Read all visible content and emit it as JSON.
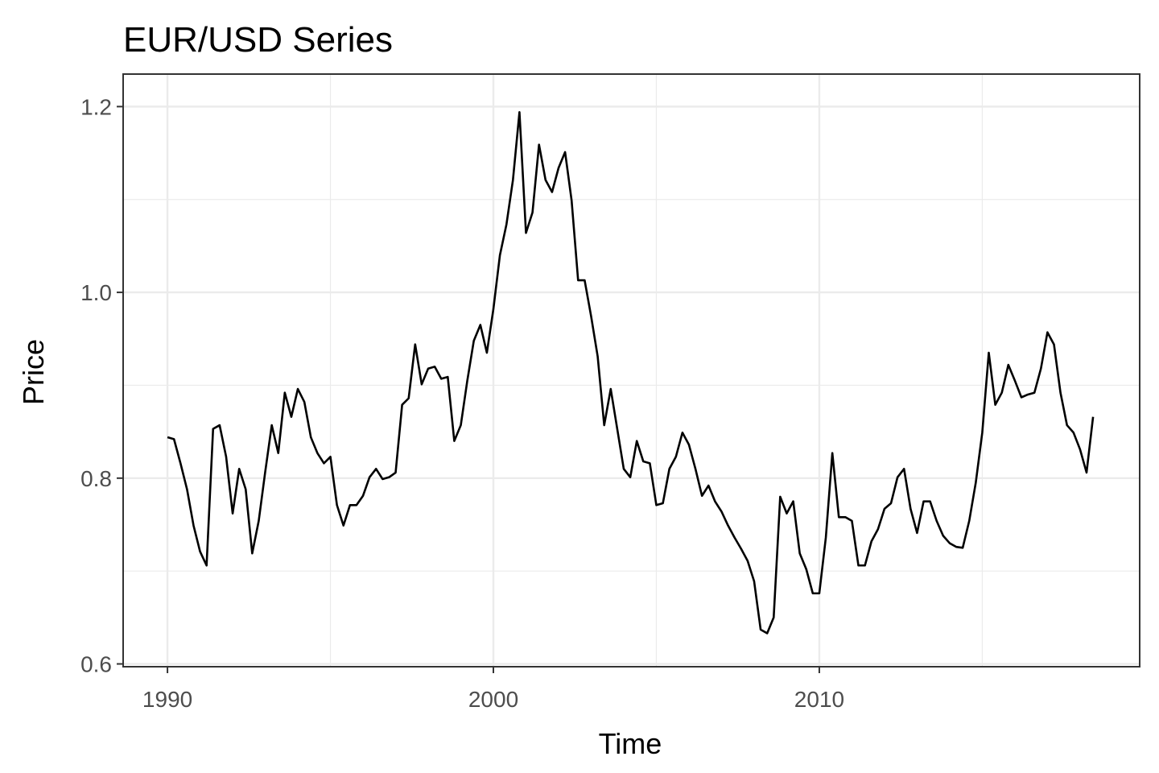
{
  "chart_data": {
    "type": "line",
    "title": "EUR/USD Series",
    "x_label": "Time",
    "y_label": "Price",
    "color": "#000000",
    "grid": true,
    "xlim": [
      1988.64,
      2019.83
    ],
    "ylim": [
      0.597,
      1.235
    ],
    "xticks": [
      1990,
      2000,
      2010
    ],
    "yticks": [
      0.6,
      0.8,
      {
        "value": 1,
        "label": "1.0"
      },
      1.2
    ],
    "x_minor_grid": [
      1995,
      2005,
      2015
    ],
    "y_minor_grid": [
      0.7,
      0.9,
      1.1
    ],
    "x": [
      1990,
      1990.2,
      1990.4,
      1990.6,
      1990.8,
      1991,
      1991.2,
      1991.4,
      1991.6,
      1991.8,
      1992,
      1992.2,
      1992.4,
      1992.6,
      1992.8,
      1993,
      1993.2,
      1993.4,
      1993.6,
      1993.8,
      1994,
      1994.2,
      1994.4,
      1994.6,
      1994.8,
      1995,
      1995.2,
      1995.4,
      1995.6,
      1995.8,
      1996,
      1996.2,
      1996.4,
      1996.6,
      1996.8,
      1997,
      1997.2,
      1997.4,
      1997.6,
      1997.8,
      1998,
      1998.2,
      1998.4,
      1998.6,
      1998.8,
      1999,
      1999.2,
      1999.4,
      1999.6,
      1999.8,
      2000,
      2000.2,
      2000.4,
      2000.6,
      2000.8,
      2001,
      2001.2,
      2001.4,
      2001.6,
      2001.8,
      2002,
      2002.2,
      2002.4,
      2002.6,
      2002.8,
      2003,
      2003.2,
      2003.4,
      2003.6,
      2003.8,
      2004,
      2004.2,
      2004.4,
      2004.6,
      2004.8,
      2005,
      2005.2,
      2005.4,
      2005.6,
      2005.8,
      2006,
      2006.2,
      2006.4,
      2006.6,
      2006.8,
      2007,
      2007.2,
      2007.4,
      2007.6,
      2007.8,
      2008,
      2008.2,
      2008.4,
      2008.6,
      2008.8,
      2009,
      2009.2,
      2009.4,
      2009.6,
      2009.8,
      2010,
      2010.2,
      2010.4,
      2010.6,
      2010.8,
      2011,
      2011.2,
      2011.4,
      2011.6,
      2011.8,
      2012,
      2012.2,
      2012.4,
      2012.6,
      2012.8,
      2013,
      2013.2,
      2013.4,
      2013.6,
      2013.8,
      2014,
      2014.2,
      2014.4,
      2014.6,
      2014.8,
      2015,
      2015.2,
      2015.4,
      2015.6,
      2015.8,
      2016,
      2016.2,
      2016.4,
      2016.6,
      2016.8,
      2017,
      2017.2,
      2017.4,
      2017.6,
      2017.8,
      2018,
      2018.2,
      2018.4
    ],
    "values": [
      0.844,
      0.842,
      0.816,
      0.788,
      0.749,
      0.721,
      0.706,
      0.853,
      0.857,
      0.823,
      0.762,
      0.81,
      0.788,
      0.719,
      0.754,
      0.807,
      0.857,
      0.827,
      0.892,
      0.866,
      0.896,
      0.882,
      0.844,
      0.827,
      0.816,
      0.823,
      0.771,
      0.749,
      0.771,
      0.771,
      0.781,
      0.801,
      0.81,
      0.799,
      0.801,
      0.806,
      0.879,
      0.886,
      0.944,
      0.901,
      0.918,
      0.92,
      0.907,
      0.909,
      0.84,
      0.857,
      0.905,
      0.948,
      0.965,
      0.935,
      0.982,
      1.04,
      1.073,
      1.121,
      1.194,
      1.064,
      1.086,
      1.159,
      1.121,
      1.108,
      1.134,
      1.151,
      1.099,
      1.013,
      1.013,
      0.974,
      0.931,
      0.857,
      0.896,
      0.853,
      0.81,
      0.801,
      0.84,
      0.818,
      0.816,
      0.771,
      0.773,
      0.81,
      0.823,
      0.849,
      0.836,
      0.81,
      0.781,
      0.792,
      0.775,
      0.764,
      0.749,
      0.736,
      0.724,
      0.711,
      0.689,
      0.637,
      0.633,
      0.65,
      0.78,
      0.762,
      0.775,
      0.719,
      0.702,
      0.676,
      0.676,
      0.736,
      0.827,
      0.758,
      0.758,
      0.754,
      0.706,
      0.706,
      0.732,
      0.745,
      0.767,
      0.773,
      0.801,
      0.81,
      0.767,
      0.741,
      0.775,
      0.775,
      0.754,
      0.738,
      0.73,
      0.726,
      0.725,
      0.754,
      0.795,
      0.849,
      0.935,
      0.879,
      0.892,
      0.922,
      0.905,
      0.887,
      0.89,
      0.892,
      0.918,
      0.957,
      0.944,
      0.892,
      0.857,
      0.849,
      0.831,
      0.806,
      0.866
    ]
  }
}
